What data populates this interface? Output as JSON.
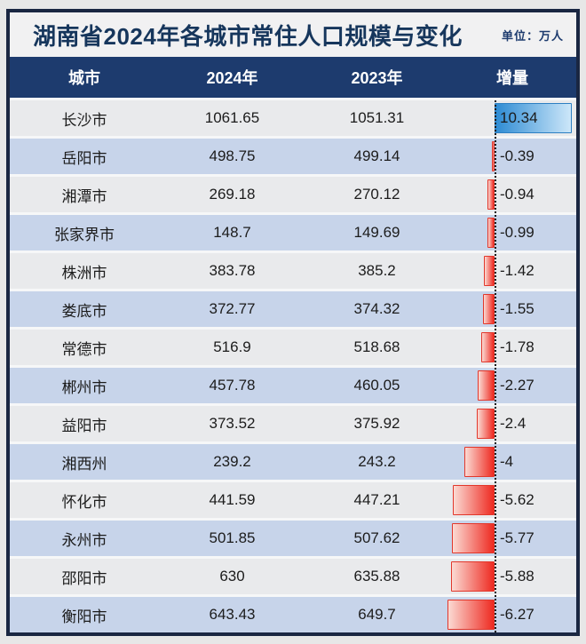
{
  "header": {
    "title": "湖南省2024年各城市常住人口规模与变化",
    "unit": "单位：万人"
  },
  "table": {
    "columns": [
      "城市",
      "2024年",
      "2023年",
      "增量"
    ],
    "rows": [
      {
        "city": "长沙市",
        "y2024": "1061.65",
        "y2023": "1051.31",
        "delta": "10.34",
        "delta_value": 10.34
      },
      {
        "city": "岳阳市",
        "y2024": "498.75",
        "y2023": "499.14",
        "delta": "-0.39",
        "delta_value": -0.39
      },
      {
        "city": "湘潭市",
        "y2024": "269.18",
        "y2023": "270.12",
        "delta": "-0.94",
        "delta_value": -0.94
      },
      {
        "city": "张家界市",
        "y2024": "148.7",
        "y2023": "149.69",
        "delta": "-0.99",
        "delta_value": -0.99
      },
      {
        "city": "株洲市",
        "y2024": "383.78",
        "y2023": "385.2",
        "delta": "-1.42",
        "delta_value": -1.42
      },
      {
        "city": "娄底市",
        "y2024": "372.77",
        "y2023": "374.32",
        "delta": "-1.55",
        "delta_value": -1.55
      },
      {
        "city": "常德市",
        "y2024": "516.9",
        "y2023": "518.68",
        "delta": "-1.78",
        "delta_value": -1.78
      },
      {
        "city": "郴州市",
        "y2024": "457.78",
        "y2023": "460.05",
        "delta": "-2.27",
        "delta_value": -2.27
      },
      {
        "city": "益阳市",
        "y2024": "373.52",
        "y2023": "375.92",
        "delta": "-2.4",
        "delta_value": -2.4
      },
      {
        "city": "湘西州",
        "y2024": "239.2",
        "y2023": "243.2",
        "delta": "-4",
        "delta_value": -4
      },
      {
        "city": "怀化市",
        "y2024": "441.59",
        "y2023": "447.21",
        "delta": "-5.62",
        "delta_value": -5.62
      },
      {
        "city": "永州市",
        "y2024": "501.85",
        "y2023": "507.62",
        "delta": "-5.77",
        "delta_value": -5.77
      },
      {
        "city": "邵阳市",
        "y2024": "630",
        "y2023": "635.88",
        "delta": "-5.88",
        "delta_value": -5.88
      },
      {
        "city": "衡阳市",
        "y2024": "643.43",
        "y2023": "649.7",
        "delta": "-6.27",
        "delta_value": -6.27
      }
    ]
  },
  "colors": {
    "frame_border": "#1a2742",
    "header_bg": "#1d3b6e",
    "title_text": "#16365c",
    "row_light": "#e9eaec",
    "row_lavender": "#c7d4ea",
    "positive_bar_start": "#2d8bd3",
    "positive_bar_end": "#cde7f9",
    "negative_bar_start": "#fbdad3",
    "negative_bar_end": "#ee2a21"
  },
  "chart_data": {
    "type": "table",
    "title": "湖南省2024年各城市常住人口规模与变化",
    "unit": "万人",
    "columns": [
      "城市",
      "2024年",
      "2023年",
      "增量"
    ],
    "categories": [
      "长沙市",
      "岳阳市",
      "湘潭市",
      "张家界市",
      "株洲市",
      "娄底市",
      "常德市",
      "郴州市",
      "益阳市",
      "湘西州",
      "怀化市",
      "永州市",
      "邵阳市",
      "衡阳市"
    ],
    "series": [
      {
        "name": "2024年",
        "values": [
          1061.65,
          498.75,
          269.18,
          148.7,
          383.78,
          372.77,
          516.9,
          457.78,
          373.52,
          239.2,
          441.59,
          501.85,
          630,
          643.43
        ]
      },
      {
        "name": "2023年",
        "values": [
          1051.31,
          499.14,
          270.12,
          149.69,
          385.2,
          374.32,
          518.68,
          460.05,
          375.92,
          243.2,
          447.21,
          507.62,
          635.88,
          649.7
        ]
      },
      {
        "name": "增量",
        "values": [
          10.34,
          -0.39,
          -0.94,
          -0.99,
          -1.42,
          -1.55,
          -1.78,
          -2.27,
          -2.4,
          -4,
          -5.62,
          -5.77,
          -5.88,
          -6.27
        ]
      }
    ],
    "layout_hints": {
      "databar_column": "增量",
      "databar_axis": "dashed vertical line",
      "positive_bars_point_right": true,
      "negative_bars_point_left": true,
      "row_striping": "alternating light-gray / lavender"
    }
  }
}
